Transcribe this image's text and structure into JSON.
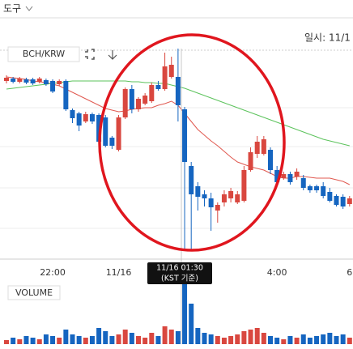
{
  "toolbar": {
    "menu": "도구",
    "date_label": "일시: 11/1"
  },
  "chart_data": {
    "type": "candlestick",
    "symbol": "BCH/KRW",
    "categories": [
      null,
      null,
      null,
      null,
      null,
      null,
      null,
      "22:00",
      null,
      null,
      null,
      null,
      null,
      null,
      null,
      null,
      null,
      "11/16",
      null,
      null,
      null,
      null,
      null,
      null,
      null,
      null,
      null,
      null,
      null,
      null,
      null,
      null,
      null,
      null,
      null,
      null,
      null,
      null,
      null,
      null,
      null,
      "4:00",
      null,
      null,
      null,
      null,
      null,
      null,
      null,
      null,
      null,
      null,
      "6"
    ],
    "open": [
      300,
      303,
      299,
      302,
      302,
      299,
      301,
      300,
      296,
      300,
      264,
      260,
      250,
      259,
      258,
      255,
      230,
      215,
      255,
      290,
      265,
      272,
      275,
      295,
      290,
      305,
      305,
      265,
      195,
      170,
      160,
      155,
      140,
      150,
      155,
      150,
      152,
      190,
      210,
      210,
      215,
      190,
      180,
      185,
      182,
      180,
      170,
      170,
      170,
      163,
      158,
      157,
      148
    ],
    "high": [
      307,
      305,
      305,
      304,
      304,
      305,
      303,
      302,
      302,
      302,
      266,
      262,
      262,
      261,
      260,
      258,
      232,
      258,
      292,
      295,
      280,
      285,
      298,
      300,
      335,
      330,
      340,
      268,
      200,
      175,
      165,
      162,
      150,
      165,
      168,
      164,
      195,
      218,
      232,
      232,
      218,
      195,
      188,
      188,
      192,
      184,
      172,
      172,
      175,
      168,
      160,
      160,
      158
    ],
    "low": [
      297,
      297,
      297,
      296,
      295,
      297,
      294,
      285,
      294,
      263,
      248,
      238,
      248,
      247,
      222,
      218,
      216,
      213,
      253,
      260,
      262,
      270,
      273,
      288,
      288,
      303,
      250,
      90,
      90,
      140,
      145,
      115,
      125,
      145,
      150,
      148,
      150,
      188,
      205,
      208,
      185,
      172,
      178,
      172,
      178,
      165,
      162,
      162,
      155,
      150,
      145,
      142,
      145
    ],
    "close": [
      304,
      299,
      303,
      298,
      297,
      303,
      296,
      287,
      300,
      265,
      254,
      245,
      259,
      250,
      225,
      220,
      220,
      255,
      290,
      265,
      278,
      282,
      295,
      290,
      318,
      320,
      270,
      200,
      160,
      157,
      155,
      144,
      147,
      160,
      164,
      160,
      190,
      212,
      225,
      228,
      190,
      175,
      185,
      175,
      188,
      168,
      165,
      165,
      158,
      152,
      147,
      145,
      155
    ],
    "up_color": "#d9473f",
    "down_color": "#1565c0",
    "ylim": [
      82,
      340
    ],
    "moving_averages": [
      {
        "color": "#e0584f",
        "values": [
          305,
          304,
          303,
          302,
          300,
          299,
          298,
          296,
          294,
          290,
          286,
          282,
          278,
          274,
          270,
          266,
          264,
          262,
          263,
          265,
          266,
          267,
          267,
          270,
          272,
          275,
          270,
          260,
          250,
          240,
          233,
          226,
          220,
          213,
          206,
          200,
          197,
          194,
          192,
          190,
          186,
          182,
          180,
          180,
          182,
          182,
          181,
          180,
          180,
          180,
          178,
          176,
          172
        ]
      },
      {
        "color": "#5cc35c",
        "values": [
          290,
          291,
          292,
          293,
          294,
          295,
          296,
          297,
          298,
          299,
          300,
          300,
          300,
          300,
          300,
          300,
          300,
          300,
          300,
          299,
          299,
          298,
          298,
          297,
          297,
          295,
          293,
          291,
          288,
          285,
          282,
          279,
          276,
          273,
          270,
          267,
          264,
          261,
          258,
          255,
          252,
          249,
          246,
          243,
          240,
          237,
          234,
          231,
          228,
          226,
          224,
          222,
          220
        ]
      }
    ],
    "volume": {
      "label": "VOLUME",
      "ylim": [
        0,
        80
      ],
      "values": [
        5,
        8,
        6,
        10,
        8,
        6,
        12,
        10,
        8,
        18,
        12,
        10,
        8,
        10,
        20,
        16,
        10,
        12,
        18,
        14,
        10,
        8,
        14,
        10,
        22,
        18,
        16,
        75,
        50,
        20,
        14,
        12,
        10,
        8,
        10,
        12,
        16,
        18,
        20,
        14,
        10,
        8,
        6,
        10,
        8,
        12,
        8,
        10,
        12,
        14,
        10,
        12,
        8
      ]
    }
  },
  "crosshair": {
    "time": "11/16 01:30",
    "note": "(KST 기준)"
  }
}
